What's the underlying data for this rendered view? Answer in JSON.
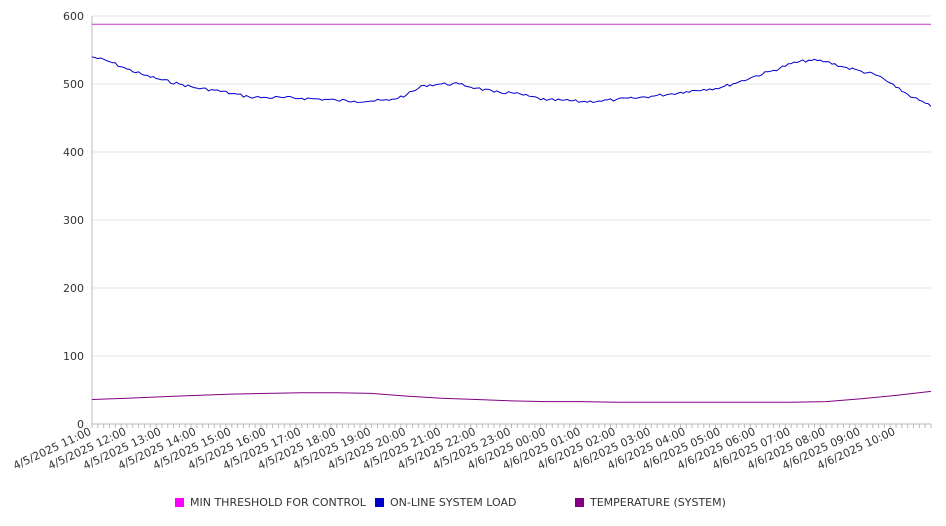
{
  "chart_data": {
    "type": "line",
    "title": "",
    "xlabel": "",
    "ylabel": "",
    "ylim": [
      0,
      600
    ],
    "y_ticks": [
      0,
      100,
      200,
      300,
      400,
      500,
      600
    ],
    "grid": true,
    "legend_position": "bottom",
    "x_start": "4/5/2025 11:00",
    "x_end": "4/6/2025 11:00",
    "x_tick_labels": [
      "4/5/2025 11:00",
      "4/5/2025 12:00",
      "4/5/2025 13:00",
      "4/5/2025 14:00",
      "4/5/2025 15:00",
      "4/5/2025 16:00",
      "4/5/2025 17:00",
      "4/5/2025 18:00",
      "4/5/2025 19:00",
      "4/5/2025 20:00",
      "4/5/2025 21:00",
      "4/5/2025 22:00",
      "4/5/2025 23:00",
      "4/6/2025 00:00",
      "4/6/2025 01:00",
      "4/6/2025 02:00",
      "4/6/2025 03:00",
      "4/6/2025 04:00",
      "4/6/2025 05:00",
      "4/6/2025 06:00",
      "4/6/2025 07:00",
      "4/6/2025 08:00",
      "4/6/2025 09:00",
      "4/6/2025 10:00"
    ],
    "series": [
      {
        "name": "MIN THRESHOLD FOR CONTROL",
        "color": "#cc33cc",
        "x": [
          "4/5/2025 11:00",
          "4/6/2025 11:00"
        ],
        "y": [
          588,
          588
        ]
      },
      {
        "name": "ON-LINE SYSTEM LOAD",
        "color": "#0000cc",
        "x": [
          "4/5/2025 11:00",
          "4/5/2025 11:30",
          "4/5/2025 12:00",
          "4/5/2025 12:30",
          "4/5/2025 13:00",
          "4/5/2025 13:30",
          "4/5/2025 14:00",
          "4/5/2025 14:30",
          "4/5/2025 15:00",
          "4/5/2025 15:30",
          "4/5/2025 16:00",
          "4/5/2025 16:30",
          "4/5/2025 17:00",
          "4/5/2025 17:30",
          "4/5/2025 18:00",
          "4/5/2025 18:30",
          "4/5/2025 19:00",
          "4/5/2025 19:30",
          "4/5/2025 20:00",
          "4/5/2025 20:30",
          "4/5/2025 21:00",
          "4/5/2025 21:30",
          "4/5/2025 22:00",
          "4/5/2025 22:30",
          "4/5/2025 23:00",
          "4/5/2025 23:30",
          "4/6/2025 00:00",
          "4/6/2025 00:30",
          "4/6/2025 01:00",
          "4/6/2025 01:30",
          "4/6/2025 02:00",
          "4/6/2025 02:30",
          "4/6/2025 03:00",
          "4/6/2025 03:30",
          "4/6/2025 04:00",
          "4/6/2025 04:30",
          "4/6/2025 05:00",
          "4/6/2025 05:30",
          "4/6/2025 06:00",
          "4/6/2025 06:30",
          "4/6/2025 07:00",
          "4/6/2025 07:30",
          "4/6/2025 08:00",
          "4/6/2025 08:30",
          "4/6/2025 09:00",
          "4/6/2025 09:30",
          "4/6/2025 10:00",
          "4/6/2025 10:30",
          "4/6/2025 11:00"
        ],
        "y": [
          540,
          533,
          522,
          513,
          506,
          500,
          494,
          491,
          486,
          481,
          480,
          480,
          479,
          478,
          476,
          475,
          475,
          476,
          484,
          498,
          500,
          500,
          494,
          488,
          487,
          482,
          476,
          476,
          474,
          475,
          477,
          479,
          482,
          485,
          489,
          492,
          495,
          503,
          512,
          520,
          530,
          535,
          533,
          525,
          519,
          512,
          495,
          480,
          467
        ]
      },
      {
        "name": "TEMPERATURE (SYSTEM)",
        "color": "#800080",
        "x": [
          "4/5/2025 11:00",
          "4/5/2025 12:00",
          "4/5/2025 13:00",
          "4/5/2025 14:00",
          "4/5/2025 15:00",
          "4/5/2025 16:00",
          "4/5/2025 17:00",
          "4/5/2025 18:00",
          "4/5/2025 19:00",
          "4/5/2025 20:00",
          "4/5/2025 21:00",
          "4/5/2025 22:00",
          "4/5/2025 23:00",
          "4/6/2025 00:00",
          "4/6/2025 01:00",
          "4/6/2025 02:00",
          "4/6/2025 03:00",
          "4/6/2025 04:00",
          "4/6/2025 05:00",
          "4/6/2025 06:00",
          "4/6/2025 07:00",
          "4/6/2025 08:00",
          "4/6/2025 09:00",
          "4/6/2025 10:00",
          "4/6/2025 11:00"
        ],
        "y": [
          36,
          38,
          40,
          42,
          44,
          45,
          46,
          46,
          45,
          41,
          38,
          36,
          34,
          33,
          33,
          32,
          32,
          32,
          32,
          32,
          32,
          33,
          37,
          42,
          48
        ]
      }
    ]
  }
}
